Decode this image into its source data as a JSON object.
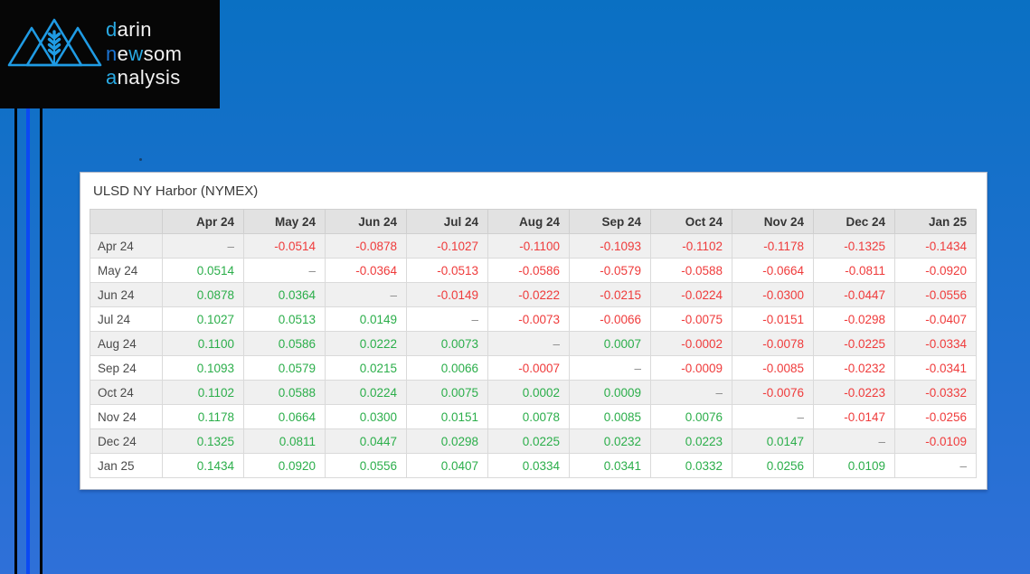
{
  "colors": {
    "background_top": "#0a70c3",
    "background_bottom": "#2f70d8",
    "stripe_bright_blue": "#0b4af2",
    "logo_accent_light": "#29a9e2",
    "logo_accent_deep": "#1b74d4",
    "negative_value": "#ef3b3b",
    "positive_value": "#2bae4a",
    "dash_value": "#8c8c8c"
  },
  "logo": {
    "icon": "mountains-wheat-icon",
    "words": [
      {
        "segments": [
          {
            "t": "d",
            "c": "accent1"
          },
          {
            "t": "arin",
            "c": "white"
          }
        ]
      },
      {
        "segments": [
          {
            "t": "n",
            "c": "accent2"
          },
          {
            "t": "e",
            "c": "white"
          },
          {
            "t": "w",
            "c": "accent1"
          },
          {
            "t": "som",
            "c": "white"
          }
        ]
      },
      {
        "segments": [
          {
            "t": "a",
            "c": "accent1"
          },
          {
            "t": "nalysis",
            "c": "white"
          }
        ]
      }
    ]
  },
  "table": {
    "title": "ULSD NY Harbor (NYMEX)",
    "columns": [
      "Apr 24",
      "May 24",
      "Jun 24",
      "Jul 24",
      "Aug 24",
      "Sep 24",
      "Oct 24",
      "Nov 24",
      "Dec 24",
      "Jan 25"
    ],
    "rows": [
      {
        "label": "Apr 24",
        "values": [
          "–",
          "-0.0514",
          "-0.0878",
          "-0.1027",
          "-0.1100",
          "-0.1093",
          "-0.1102",
          "-0.1178",
          "-0.1325",
          "-0.1434"
        ]
      },
      {
        "label": "May 24",
        "values": [
          "0.0514",
          "–",
          "-0.0364",
          "-0.0513",
          "-0.0586",
          "-0.0579",
          "-0.0588",
          "-0.0664",
          "-0.0811",
          "-0.0920"
        ]
      },
      {
        "label": "Jun 24",
        "values": [
          "0.0878",
          "0.0364",
          "–",
          "-0.0149",
          "-0.0222",
          "-0.0215",
          "-0.0224",
          "-0.0300",
          "-0.0447",
          "-0.0556"
        ]
      },
      {
        "label": "Jul 24",
        "values": [
          "0.1027",
          "0.0513",
          "0.0149",
          "–",
          "-0.0073",
          "-0.0066",
          "-0.0075",
          "-0.0151",
          "-0.0298",
          "-0.0407"
        ]
      },
      {
        "label": "Aug 24",
        "values": [
          "0.1100",
          "0.0586",
          "0.0222",
          "0.0073",
          "–",
          "0.0007",
          "-0.0002",
          "-0.0078",
          "-0.0225",
          "-0.0334"
        ]
      },
      {
        "label": "Sep 24",
        "values": [
          "0.1093",
          "0.0579",
          "0.0215",
          "0.0066",
          "-0.0007",
          "–",
          "-0.0009",
          "-0.0085",
          "-0.0232",
          "-0.0341"
        ]
      },
      {
        "label": "Oct 24",
        "values": [
          "0.1102",
          "0.0588",
          "0.0224",
          "0.0075",
          "0.0002",
          "0.0009",
          "–",
          "-0.0076",
          "-0.0223",
          "-0.0332"
        ]
      },
      {
        "label": "Nov 24",
        "values": [
          "0.1178",
          "0.0664",
          "0.0300",
          "0.0151",
          "0.0078",
          "0.0085",
          "0.0076",
          "–",
          "-0.0147",
          "-0.0256"
        ]
      },
      {
        "label": "Dec 24",
        "values": [
          "0.1325",
          "0.0811",
          "0.0447",
          "0.0298",
          "0.0225",
          "0.0232",
          "0.0223",
          "0.0147",
          "–",
          "-0.0109"
        ]
      },
      {
        "label": "Jan 25",
        "values": [
          "0.1434",
          "0.0920",
          "0.0556",
          "0.0407",
          "0.0334",
          "0.0341",
          "0.0332",
          "0.0256",
          "0.0109",
          "–"
        ]
      }
    ]
  }
}
